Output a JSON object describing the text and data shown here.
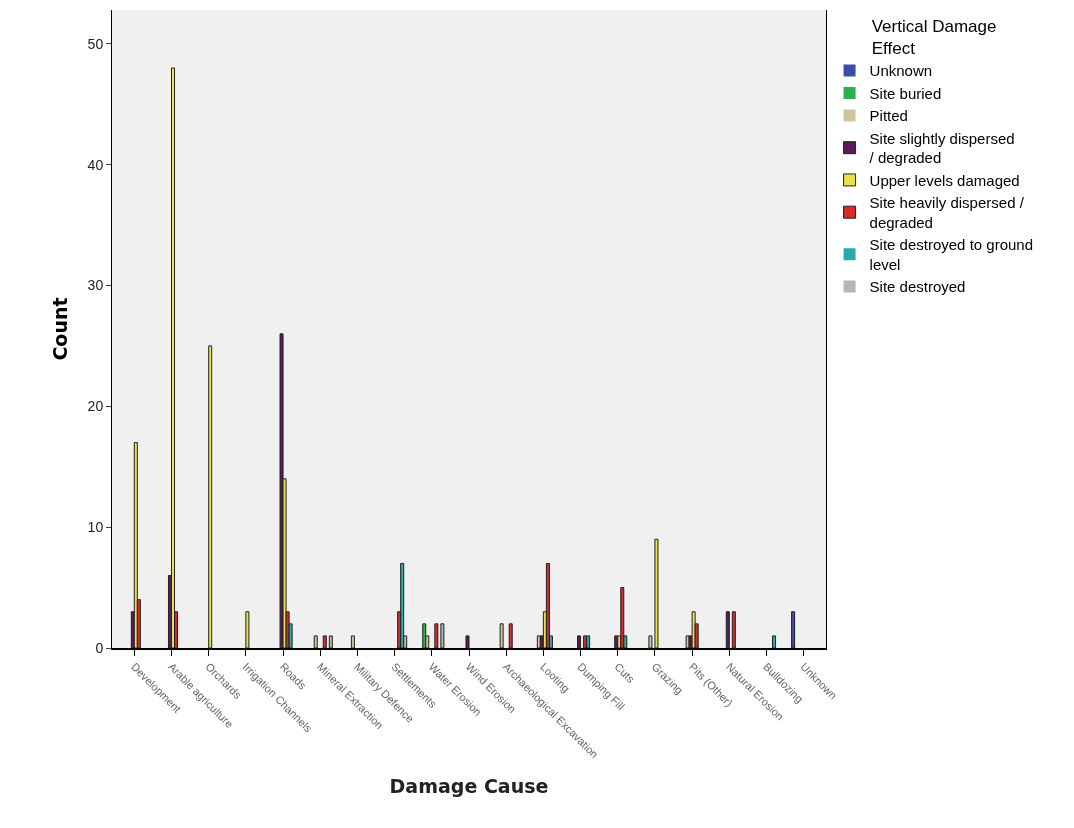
{
  "chart_data": {
    "type": "bar",
    "xlabel": "Damage Cause",
    "ylabel": "Count",
    "legend_title": "Vertical Damage Effect",
    "categories": [
      "Development",
      "Arable agriculture",
      "Orchards",
      "Irrigation Channels",
      "Roads",
      "Mineral Extraction",
      "Military Defence",
      "Settlements",
      "Water Erosion",
      "Wind Erosion",
      "Archaeological Excavation",
      "Looting",
      "Dumping Fill",
      "Cuts",
      "Grazing",
      "Pits (Other)",
      "Natural Erosion",
      "Bulldozing",
      "Unknown"
    ],
    "series": [
      {
        "name": "Unknown",
        "color": "#3a4ea6",
        "values": [
          0,
          0,
          0,
          0,
          0,
          0,
          0,
          0,
          0,
          0,
          0,
          0,
          0,
          0,
          0,
          0,
          0,
          0,
          3
        ]
      },
      {
        "name": "Site buried",
        "color": "#2bb24c",
        "values": [
          0,
          0,
          0,
          0,
          0,
          0,
          0,
          0,
          2,
          0,
          0,
          0,
          0,
          0,
          0,
          0,
          0,
          0,
          0
        ]
      },
      {
        "name": "Pitted",
        "color": "#cdc69a",
        "values": [
          0,
          0,
          0,
          0,
          0,
          1,
          1,
          0,
          1,
          0,
          2,
          1,
          0,
          0,
          1,
          1,
          0,
          0,
          0
        ]
      },
      {
        "name": "Site slightly dispersed / degraded",
        "color": "#5b1a5f",
        "values": [
          3,
          6,
          0,
          0,
          26,
          0,
          0,
          0,
          0,
          1,
          0,
          1,
          1,
          1,
          0,
          1,
          3,
          0,
          0
        ]
      },
      {
        "name": "Upper levels damaged",
        "color": "#e9e14c",
        "values": [
          17,
          48,
          25,
          3,
          14,
          0,
          0,
          0,
          0,
          0,
          0,
          3,
          0,
          1,
          9,
          3,
          0,
          0,
          0
        ]
      },
      {
        "name": "Site heavily dispersed / degraded",
        "color": "#d42a2a",
        "values": [
          4,
          3,
          0,
          0,
          3,
          1,
          0,
          3,
          2,
          0,
          2,
          7,
          1,
          5,
          0,
          2,
          3,
          0,
          0
        ]
      },
      {
        "name": "Site destroyed to ground level",
        "color": "#2aa9aa",
        "values": [
          0,
          0,
          0,
          0,
          2,
          0,
          0,
          7,
          0,
          0,
          0,
          1,
          1,
          1,
          0,
          0,
          0,
          1,
          0
        ]
      },
      {
        "name": "Site destroyed",
        "color": "#b5b5b5",
        "values": [
          0,
          0,
          0,
          0,
          0,
          1,
          0,
          1,
          2,
          0,
          0,
          0,
          0,
          0,
          0,
          0,
          0,
          0,
          0
        ]
      }
    ],
    "ylim": [
      0,
      52.8
    ],
    "yticks": [
      0,
      10,
      20,
      30,
      40,
      50
    ],
    "grid": false,
    "legend": "right"
  }
}
